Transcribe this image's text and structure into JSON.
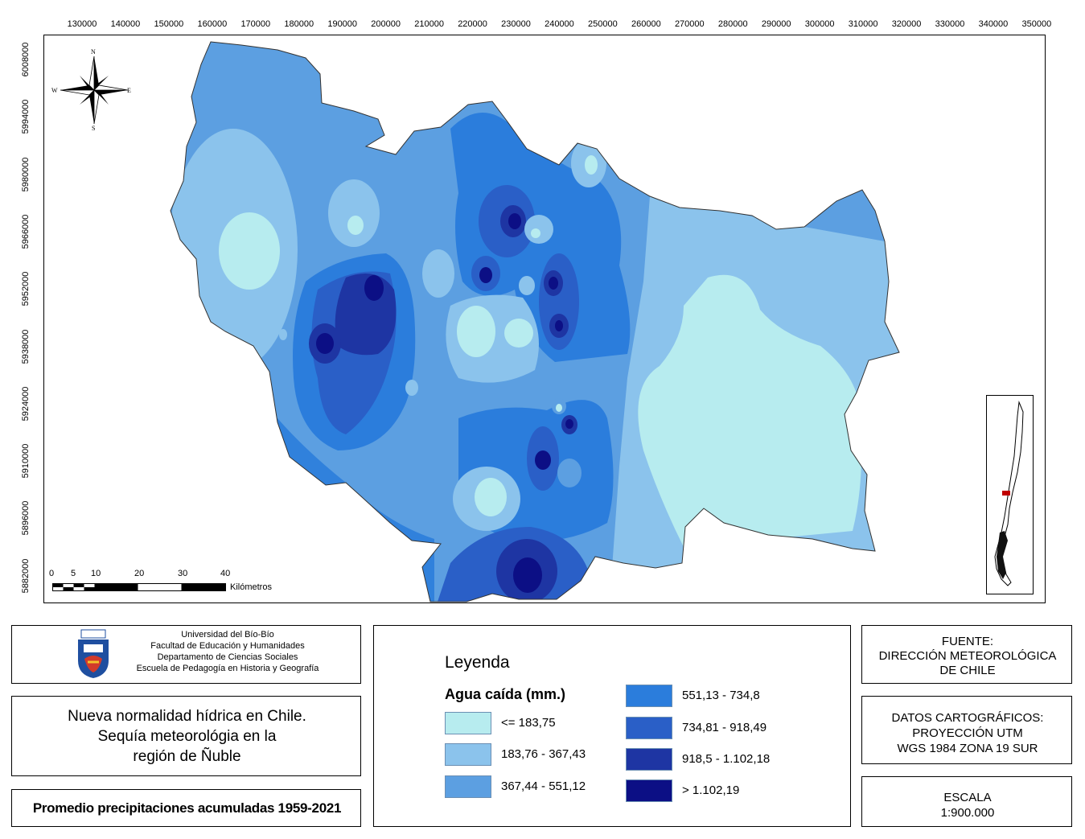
{
  "axes": {
    "x_ticks": [
      "130000",
      "140000",
      "150000",
      "160000",
      "170000",
      "180000",
      "190000",
      "200000",
      "210000",
      "220000",
      "230000",
      "240000",
      "250000",
      "260000",
      "270000",
      "280000",
      "290000",
      "300000",
      "310000",
      "320000",
      "330000",
      "340000",
      "350000"
    ],
    "y_ticks": [
      "6008000",
      "5994000",
      "5980000",
      "5966000",
      "5952000",
      "5938000",
      "5924000",
      "5910000",
      "5896000",
      "5882000"
    ]
  },
  "north_arrow": {
    "n": "N",
    "s": "S",
    "e": "E",
    "w": "W"
  },
  "scalebar": {
    "ticks": [
      "0",
      "5",
      "10",
      "20",
      "30",
      "40"
    ],
    "unit": "Kilómetros"
  },
  "institution": {
    "lines": [
      "Universidad del Bío-Bío",
      "Facultad de Educación y Humanidades",
      "Departamento de Ciencias Sociales",
      "Escuela de Pedagogía en Historia y Geografía"
    ]
  },
  "title": {
    "line1": "Nueva normalidad hídrica en Chile.",
    "line2": "Sequía meteorológia en la",
    "line3": "región de Ñuble"
  },
  "subtitle": "Promedio precipitaciones acumuladas 1959-2021",
  "legend": {
    "heading": "Leyenda",
    "variable": "Agua caída (mm.)",
    "classes": [
      {
        "label": "<= 183,75",
        "color": "#b7ecef"
      },
      {
        "label": "183,76 - 367,43",
        "color": "#8bc3ec"
      },
      {
        "label": "367,44 - 551,12",
        "color": "#5c9fe1"
      },
      {
        "label": "551,13 - 734,8",
        "color": "#2b7ddc"
      },
      {
        "label": "734,81 - 918,49",
        "color": "#2a5fc7"
      },
      {
        "label": "918,5 - 1.102,18",
        "color": "#1e35a3"
      },
      {
        "label": "> 1.102,19",
        "color": "#0c0f85"
      }
    ]
  },
  "source": {
    "l1": "FUENTE:",
    "l2": "DIRECCIÓN METEOROLÓGICA",
    "l3": "DE CHILE"
  },
  "carto": {
    "l1": "DATOS CARTOGRÁFICOS:",
    "l2": "PROYECCIÓN UTM",
    "l3": "WGS 1984 ZONA 19 SUR"
  },
  "scale": {
    "l1": "ESCALA",
    "l2": "1:900.000"
  }
}
